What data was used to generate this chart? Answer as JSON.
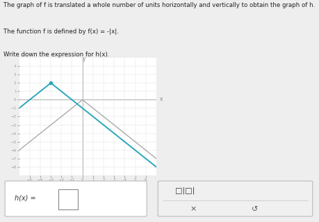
{
  "title_line1": "The graph of f is translated a whole number of units horizontally and vertically to obtain the graph of h.",
  "title_line2": "The function f is defined by f(x) = -|x|.",
  "title_line3": "Write down the expression for h(x).",
  "xlim": [
    -6,
    7
  ],
  "ylim": [
    -9,
    5
  ],
  "xticks": [
    -5,
    -4,
    -3,
    -2,
    -1,
    0,
    1,
    2,
    3,
    4,
    5,
    6
  ],
  "yticks": [
    -8,
    -7,
    -6,
    -5,
    -4,
    -3,
    -2,
    -1,
    0,
    1,
    2,
    3,
    4
  ],
  "f_color": "#aaaaaa",
  "h_color": "#2aa8b8",
  "h_shift_x": -3,
  "h_shift_y": 2,
  "background_color": "#eeeeee",
  "plot_background": "#ffffff",
  "box_background": "#e0e0e0"
}
